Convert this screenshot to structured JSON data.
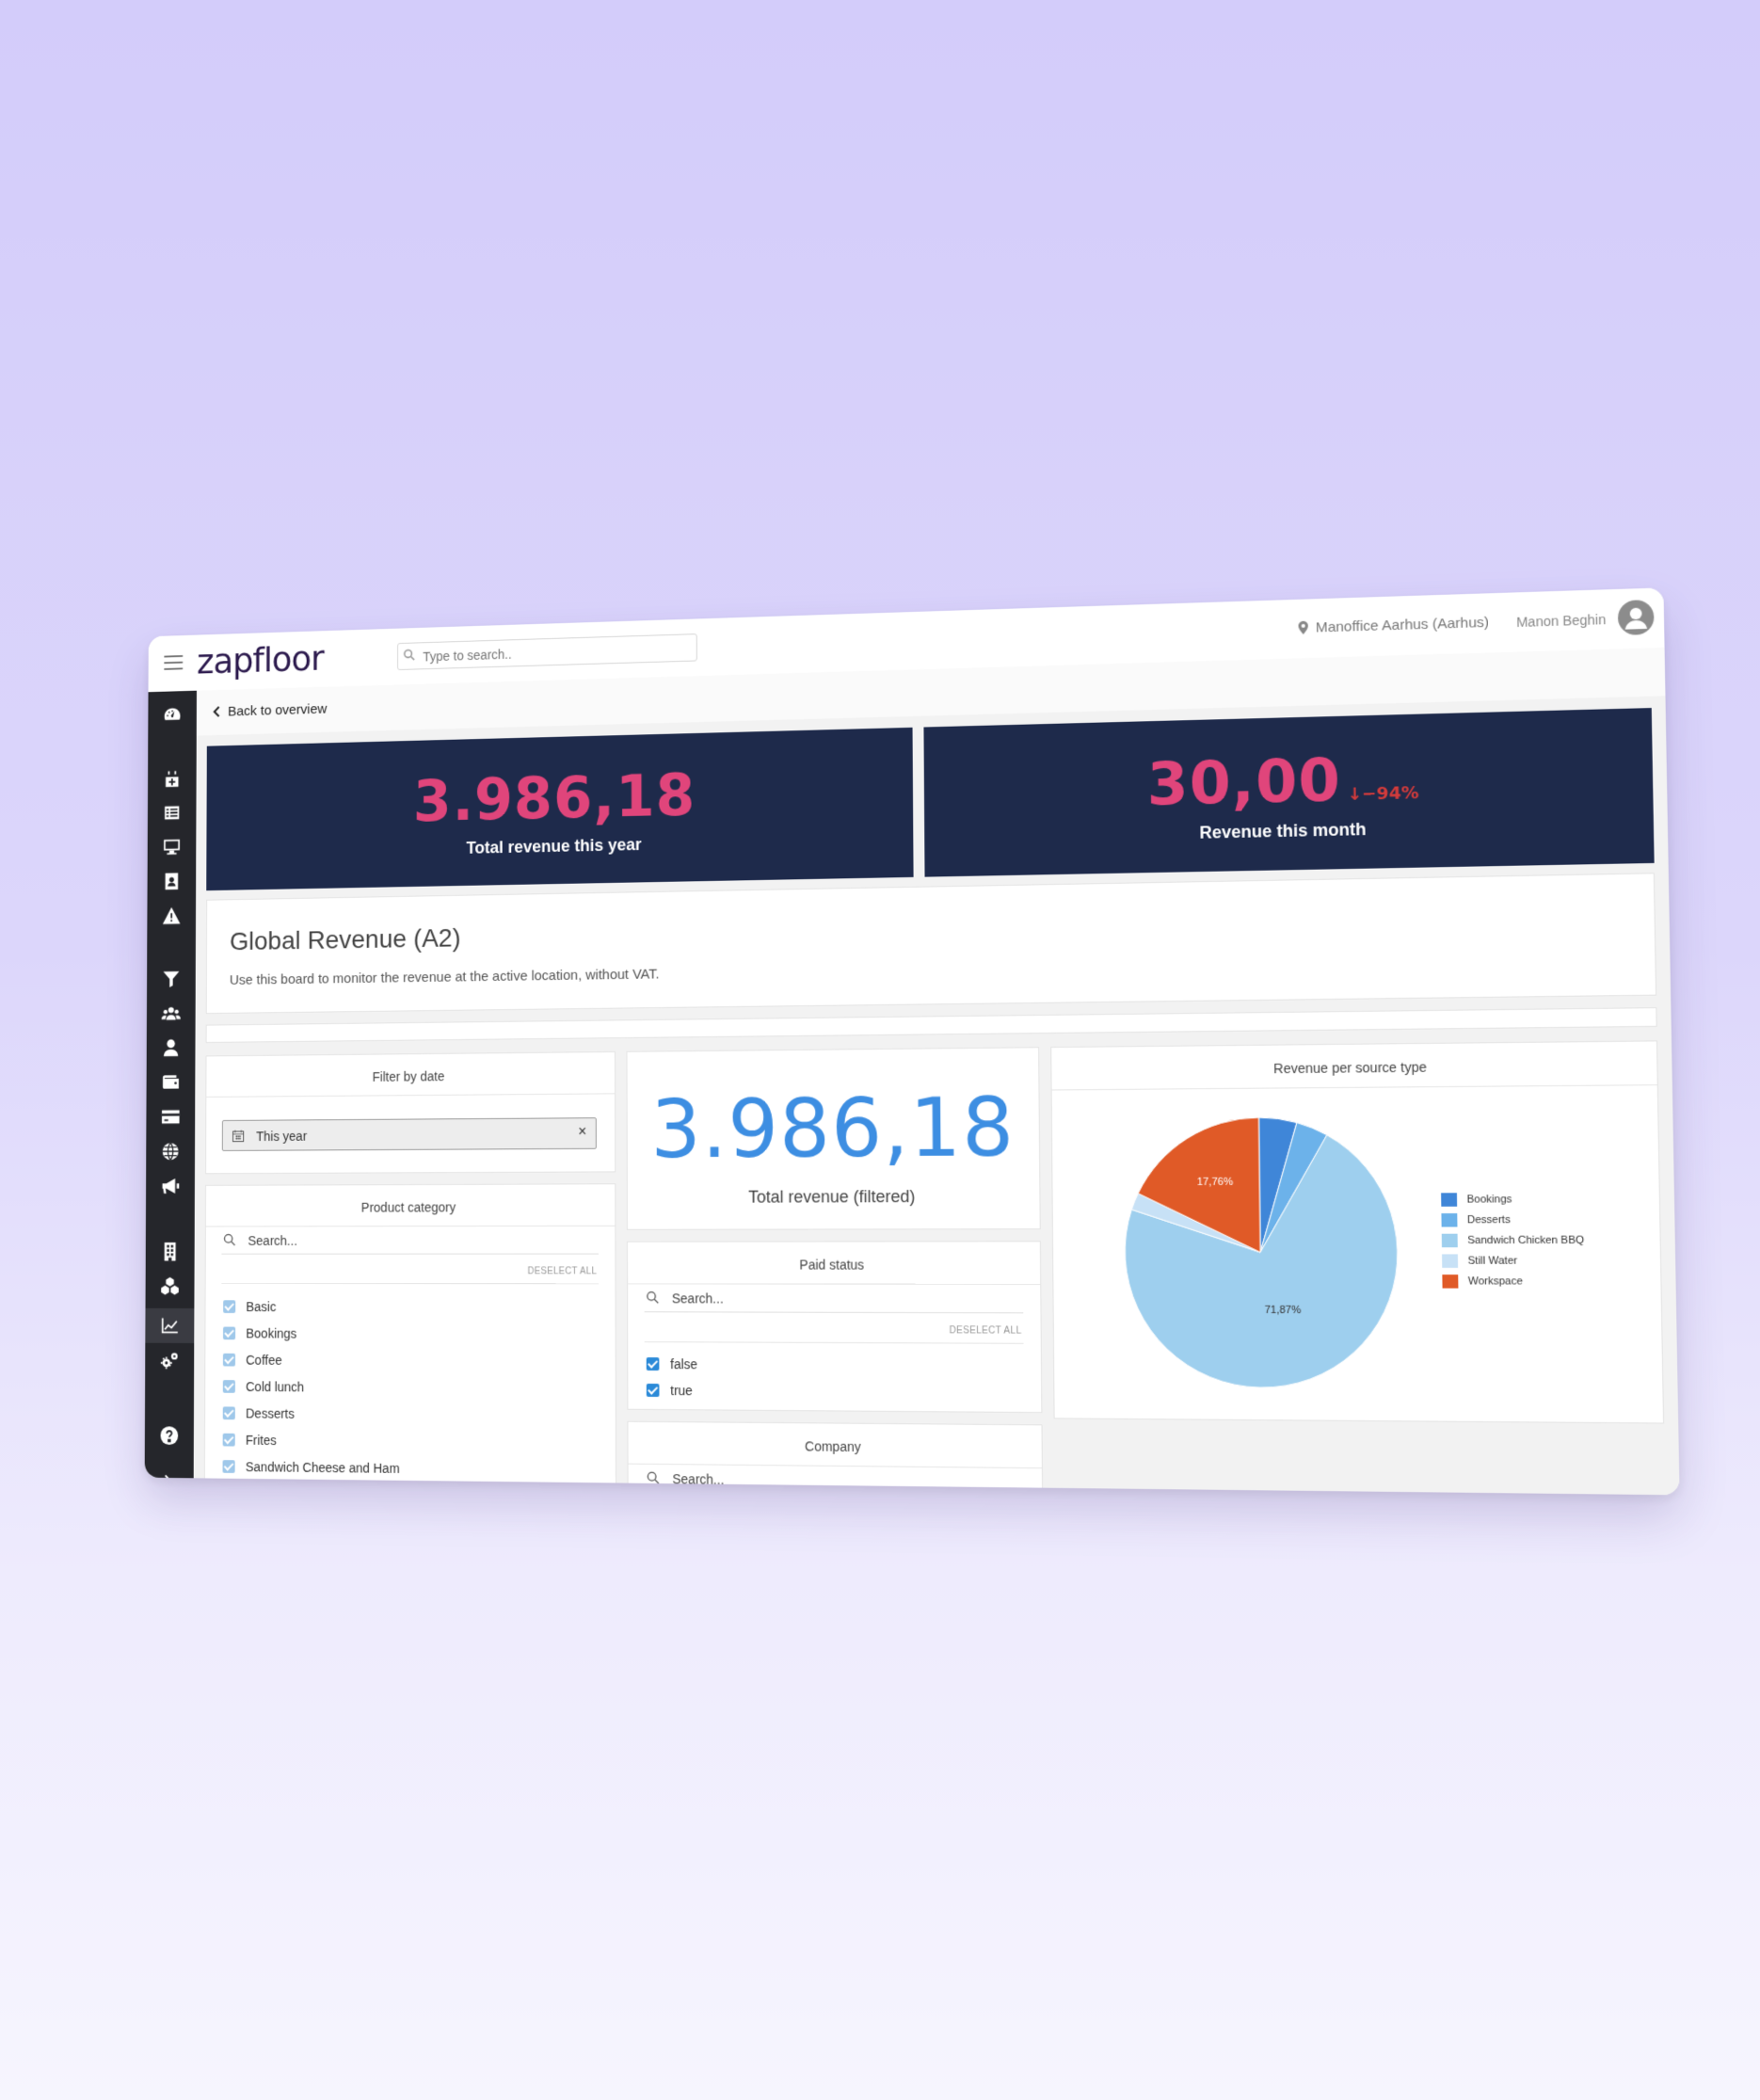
{
  "app": {
    "logo": "zapfloor",
    "search_placeholder": "Type to search..",
    "location": "Manoffice Aarhus (Aarhus)",
    "user": "Manon Beghin"
  },
  "sidebar": {
    "icons": [
      "dashboard-icon",
      "calendar-plus-icon",
      "list-icon",
      "monitor-icon",
      "contact-card-icon",
      "warning-icon",
      "filter-icon",
      "users-icon",
      "user-icon",
      "wallet-icon",
      "credit-card-icon",
      "globe-icon",
      "megaphone-icon",
      "building-icon",
      "cubes-icon",
      "chart-line-icon",
      "cogs-icon",
      "help-icon",
      "chevron-right-icon"
    ],
    "active": "chart-line-icon"
  },
  "nav": {
    "back_label": "Back to overview"
  },
  "kpis": {
    "year": {
      "value": "3.986,18",
      "label": "Total revenue this year"
    },
    "month": {
      "value": "30,00",
      "delta": "↓−94%",
      "label": "Revenue this month"
    }
  },
  "board": {
    "title": "Global Revenue (A2)",
    "description": "Use this board to monitor the revenue at the active location, without VAT."
  },
  "filter_date": {
    "title": "Filter by date",
    "value": "This year",
    "clear": "×"
  },
  "product_category": {
    "title": "Product category",
    "search_placeholder": "Search...",
    "deselect": "DESELECT ALL",
    "items": [
      "Basic",
      "Bookings",
      "Coffee",
      "Cold lunch",
      "Desserts",
      "Frites",
      "Sandwich Cheese and Ham"
    ]
  },
  "total_filtered": {
    "value": "3.986,18",
    "label": "Total revenue (filtered)"
  },
  "paid_status": {
    "title": "Paid status",
    "search_placeholder": "Search...",
    "deselect": "DESELECT ALL",
    "items": [
      "false",
      "true"
    ]
  },
  "company": {
    "title": "Company",
    "search_placeholder": "Search..."
  },
  "chart_data": {
    "type": "pie",
    "title": "Revenue per source type",
    "slices": [
      {
        "name": "Bookings",
        "value": 4.5,
        "color": "#3f86d8"
      },
      {
        "name": "Desserts",
        "value": 3.8,
        "color": "#6cb2ea"
      },
      {
        "name": "Sandwich Chicken BBQ",
        "value": 71.87,
        "color": "#9ecfee"
      },
      {
        "name": "Still Water",
        "value": 2.07,
        "color": "#c7e1f6"
      },
      {
        "name": "Workspace",
        "value": 17.76,
        "color": "#e05a27"
      }
    ],
    "labels": [
      {
        "name": "Workspace",
        "text": "17,76%"
      },
      {
        "name": "Sandwich Chicken BBQ",
        "text": "71,87%"
      }
    ],
    "legend_position": "right"
  },
  "colors": {
    "kpi_bg": "#1e2a4b",
    "kpi_value": "#e0457b",
    "accent_blue": "#3d8ee2",
    "sidebar_bg": "#25262b"
  }
}
